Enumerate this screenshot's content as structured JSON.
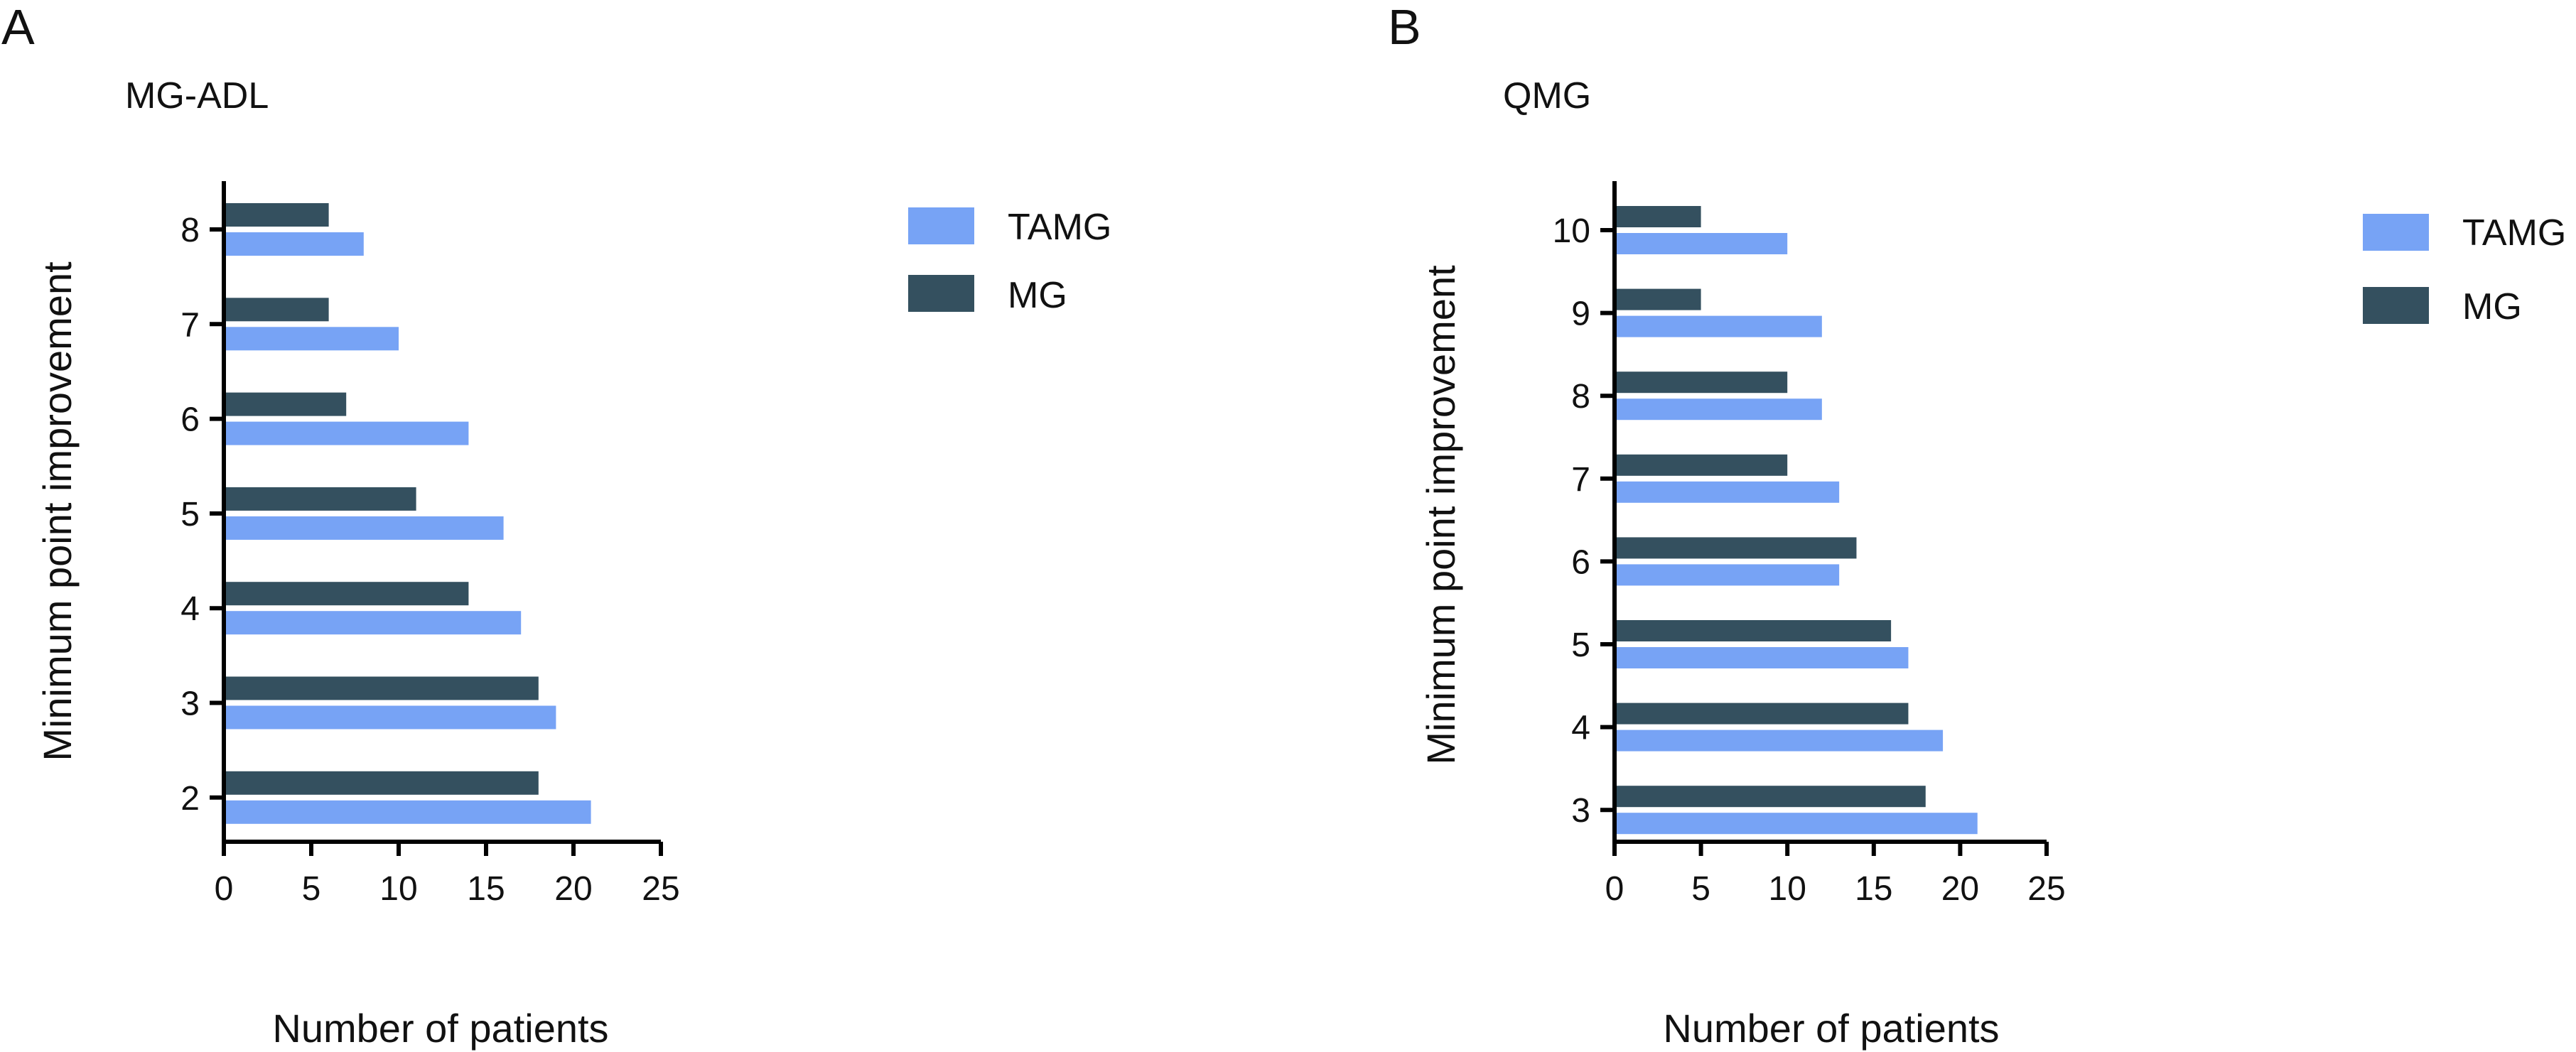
{
  "chart_data": [
    {
      "type": "bar",
      "orientation": "horizontal",
      "panel_letter": "A",
      "title": "MG-ADL",
      "xlabel": "Number of patients",
      "ylabel": "Minimum point improvement",
      "xlim": [
        0,
        25
      ],
      "xticks": [
        "0",
        "5",
        "10",
        "15",
        "20",
        "25"
      ],
      "categories": [
        "8",
        "7",
        "6",
        "5",
        "4",
        "3",
        "2"
      ],
      "series": [
        {
          "name": "MG",
          "color": "#34505f",
          "values": [
            6,
            6,
            7,
            11,
            14,
            18,
            18
          ]
        },
        {
          "name": "TAMG",
          "color": "#77a3f5",
          "values": [
            8,
            10,
            14,
            16,
            17,
            19,
            21
          ]
        }
      ],
      "legend": {
        "placement": "top-right",
        "entries": [
          "TAMG",
          "MG"
        ]
      }
    },
    {
      "type": "bar",
      "orientation": "horizontal",
      "panel_letter": "B",
      "title": "QMG",
      "xlabel": "Number of patients",
      "ylabel": "Minimum point improvement",
      "xlim": [
        0,
        25
      ],
      "xticks": [
        "0",
        "5",
        "10",
        "15",
        "20",
        "25"
      ],
      "categories": [
        "10",
        "9",
        "8",
        "7",
        "6",
        "5",
        "4",
        "3"
      ],
      "series": [
        {
          "name": "MG",
          "color": "#34505f",
          "values": [
            5,
            5,
            10,
            10,
            14,
            16,
            17,
            18
          ]
        },
        {
          "name": "TAMG",
          "color": "#77a3f5",
          "values": [
            10,
            12,
            12,
            13,
            13,
            17,
            19,
            21
          ]
        }
      ],
      "legend": {
        "placement": "top-right",
        "entries": [
          "TAMG",
          "MG"
        ]
      }
    }
  ]
}
